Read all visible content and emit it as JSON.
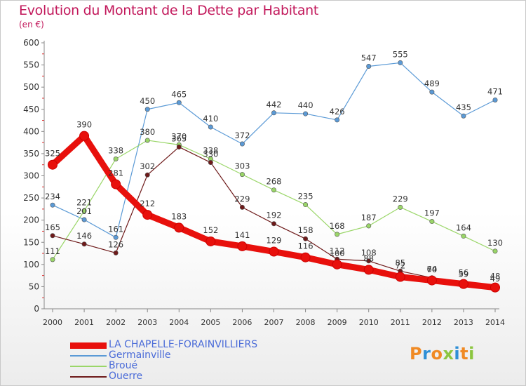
{
  "header": {
    "title": "Evolution du Montant de la Dette par Habitant",
    "subtitle": "(en €)"
  },
  "logo": {
    "text": "Proxiti",
    "colors": [
      "#f08a24",
      "#2e8fd6",
      "#f08a24",
      "#8cc63f",
      "#2e8fd6",
      "#f08a24",
      "#8cc63f"
    ]
  },
  "chart_data": {
    "type": "line",
    "title": "Evolution du Montant de la Dette par Habitant",
    "subtitle": "(en €)",
    "xlabel": "",
    "ylabel": "",
    "ylim": [
      0,
      600
    ],
    "yticks": [
      0,
      50,
      100,
      150,
      200,
      250,
      300,
      350,
      400,
      450,
      500,
      550,
      600
    ],
    "grid": false,
    "legend_position": "bottom-left",
    "x": [
      "2000",
      "2001",
      "2002",
      "2003",
      "2004",
      "2005",
      "2006",
      "2007",
      "2008",
      "2009",
      "2010",
      "2011",
      "2012",
      "2013",
      "2014"
    ],
    "series": [
      {
        "name": "LA CHAPELLE-FORAINVILLIERS",
        "color": "#e8100c",
        "values": [
          325,
          390,
          281,
          212,
          183,
          152,
          141,
          129,
          116,
          100,
          88,
          72,
          64,
          56,
          48
        ],
        "labels": [
          "325",
          "390",
          "281",
          "212",
          "183",
          "152",
          "141",
          "129",
          "116",
          "100",
          "88",
          "72",
          "64",
          "56",
          "48"
        ]
      },
      {
        "name": "Germainville",
        "color": "#5b9ad6",
        "values": [
          234,
          201,
          161,
          450,
          465,
          410,
          372,
          442,
          440,
          426,
          547,
          555,
          489,
          435,
          471
        ],
        "labels": [
          "234",
          "201",
          "161",
          "450",
          "465",
          "410",
          "372",
          "442",
          "440",
          "426",
          "547",
          "555",
          "489",
          "435",
          "471"
        ]
      },
      {
        "name": "Broué",
        "color": "#9ad668",
        "values": [
          111,
          221,
          338,
          380,
          370,
          338,
          303,
          268,
          235,
          168,
          187,
          229,
          197,
          164,
          130
        ],
        "labels": [
          "111",
          "221",
          "338",
          "380",
          "370",
          "338",
          "303",
          "268",
          "235",
          "168",
          "187",
          "229",
          "197",
          "164",
          "130"
        ]
      },
      {
        "name": "Ouerre",
        "color": "#6e1a1a",
        "values": [
          165,
          146,
          126,
          302,
          365,
          330,
          229,
          192,
          158,
          112,
          108,
          85,
          70,
          59,
          49
        ],
        "labels": [
          "165",
          "146",
          "126",
          "302",
          "365",
          "330",
          "229",
          "192",
          "158",
          "112",
          "108",
          "85",
          "70",
          "59",
          "49"
        ]
      }
    ]
  }
}
